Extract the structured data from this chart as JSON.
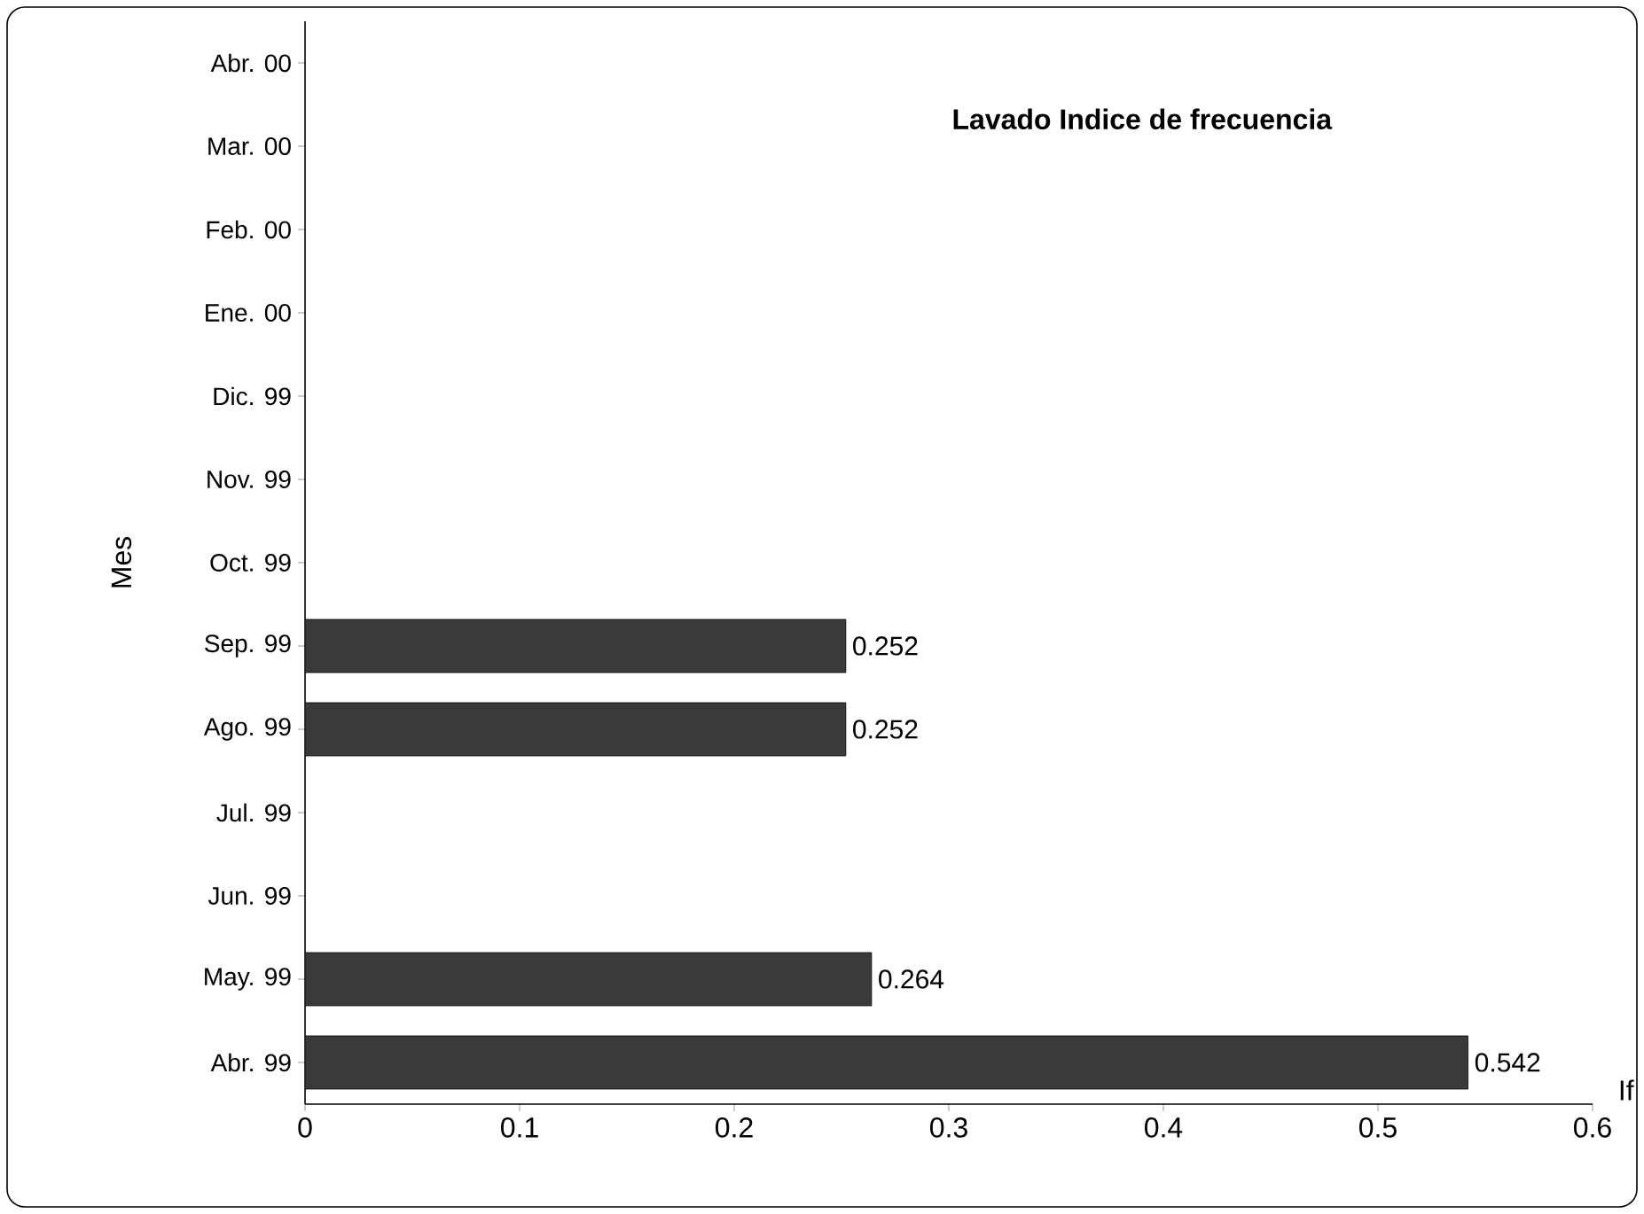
{
  "chart_data": {
    "type": "bar",
    "orientation": "horizontal",
    "title": "Lavado Indice de frecuencia",
    "xlabel": "If",
    "ylabel": "Mes",
    "categories": [
      "Abr. 00",
      "Mar. 00",
      "Feb. 00",
      "Ene. 00",
      "Dic. 99",
      "Nov. 99",
      "Oct. 99",
      "Sep. 99",
      "Ago. 99",
      "Jul. 99",
      "Jun. 99",
      "May. 99",
      "Abr. 99"
    ],
    "values": [
      null,
      null,
      null,
      null,
      null,
      null,
      null,
      0.252,
      0.252,
      null,
      null,
      0.264,
      0.542
    ],
    "color": "#3a3a3a",
    "data_labels": true,
    "xlim": [
      0,
      0.6
    ],
    "xticks": [
      0,
      0.1,
      0.2,
      0.3,
      0.4,
      0.5,
      0.6
    ],
    "grid": false
  }
}
